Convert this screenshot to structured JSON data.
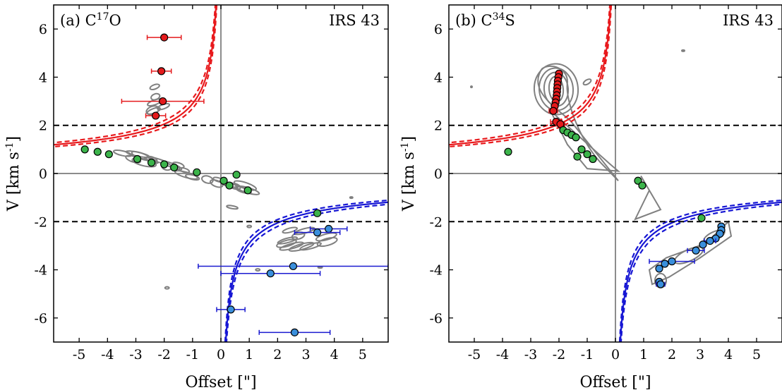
{
  "chart_data": [
    {
      "type": "scatter",
      "panel_label": "(a) C",
      "panel_label_sup": "17",
      "panel_label_end": "O",
      "source_label": "IRS 43",
      "xlabel": "Offset [\"]",
      "ylabel": "V [km s",
      "ylabel_sup": "-1",
      "ylabel_end": "]",
      "xlim": [
        -5.9,
        5.9
      ],
      "ylim": [
        -7,
        7
      ],
      "x_ticks": [
        -5,
        -4,
        -3,
        -2,
        -1,
        0,
        1,
        2,
        3,
        4,
        5
      ],
      "y_ticks": [
        -6,
        -4,
        -2,
        0,
        2,
        4,
        6
      ],
      "hlines": [
        2,
        -2
      ],
      "keplerian_scale": 2.9,
      "series": [
        {
          "color": "#e41a1c",
          "points": [
            {
              "x": -2.0,
              "y": 5.65,
              "xerr": 0.6
            },
            {
              "x": -2.1,
              "y": 4.25,
              "xerr": 0.35
            },
            {
              "x": -2.05,
              "y": 3.0,
              "xerr": 1.45
            },
            {
              "x": -2.3,
              "y": 2.4,
              "xerr": 0.35
            }
          ]
        },
        {
          "color": "#3cb44b",
          "points": [
            {
              "x": -4.8,
              "y": 1.0
            },
            {
              "x": -4.35,
              "y": 0.9
            },
            {
              "x": -3.95,
              "y": 0.8
            },
            {
              "x": -2.95,
              "y": 0.6
            },
            {
              "x": -2.45,
              "y": 0.45
            },
            {
              "x": -2.0,
              "y": 0.38
            },
            {
              "x": -1.65,
              "y": 0.25
            },
            {
              "x": -0.85,
              "y": 0.05
            },
            {
              "x": 0.1,
              "y": -0.3
            },
            {
              "x": 0.3,
              "y": -0.5
            },
            {
              "x": 0.55,
              "y": -0.05
            },
            {
              "x": 0.95,
              "y": -0.7
            },
            {
              "x": 3.4,
              "y": -1.65
            }
          ]
        },
        {
          "color": "#3a8fdc",
          "points": [
            {
              "x": 3.8,
              "y": -2.3,
              "xerr": 0.65
            },
            {
              "x": 3.4,
              "y": -2.45,
              "xerr": 0.8
            },
            {
              "x": 2.55,
              "y": -3.85,
              "xerr": 3.35
            },
            {
              "x": 1.75,
              "y": -4.15,
              "xerr": 1.75
            },
            {
              "x": 0.35,
              "y": -5.65,
              "xerr": 0.5
            },
            {
              "x": 2.6,
              "y": -6.6,
              "xerr": 1.25
            }
          ]
        }
      ]
    },
    {
      "type": "scatter",
      "panel_label": "(b) C",
      "panel_label_sup": "34",
      "panel_label_end": "S",
      "source_label": "IRS 43",
      "xlabel": "Offset [\"]",
      "ylabel": "V [km s",
      "ylabel_sup": "-1",
      "ylabel_end": "]",
      "xlim": [
        -5.9,
        5.9
      ],
      "ylim": [
        -7,
        7
      ],
      "x_ticks": [
        -5,
        -4,
        -3,
        -2,
        -1,
        0,
        1,
        2,
        3,
        4,
        5
      ],
      "y_ticks": [
        -6,
        -4,
        -2,
        0,
        2,
        4,
        6
      ],
      "hlines": [
        2,
        -2
      ],
      "keplerian_scale": 2.9,
      "series": [
        {
          "color": "#e41a1c",
          "points": [
            {
              "x": -2.0,
              "y": 4.15
            },
            {
              "x": -2.02,
              "y": 4.0
            },
            {
              "x": -2.04,
              "y": 3.85
            },
            {
              "x": -2.05,
              "y": 3.7
            },
            {
              "x": -2.06,
              "y": 3.55
            },
            {
              "x": -2.07,
              "y": 3.4
            },
            {
              "x": -2.08,
              "y": 3.25
            },
            {
              "x": -2.1,
              "y": 3.1
            },
            {
              "x": -2.12,
              "y": 2.95
            },
            {
              "x": -2.15,
              "y": 2.8
            },
            {
              "x": -2.2,
              "y": 2.6,
              "xerr": 0.15
            },
            {
              "x": -2.1,
              "y": 2.15,
              "xerr": 0.2
            },
            {
              "x": -1.95,
              "y": 2.05,
              "xerr": 0.15
            }
          ]
        },
        {
          "color": "#3cb44b",
          "points": [
            {
              "x": -1.85,
              "y": 1.8
            },
            {
              "x": -1.7,
              "y": 1.7
            },
            {
              "x": -1.55,
              "y": 1.6
            },
            {
              "x": -1.4,
              "y": 1.5
            },
            {
              "x": -1.2,
              "y": 1.0
            },
            {
              "x": -1.0,
              "y": 0.8
            },
            {
              "x": -1.35,
              "y": 0.7
            },
            {
              "x": -0.8,
              "y": 0.6
            },
            {
              "x": -3.8,
              "y": 0.9
            },
            {
              "x": 0.8,
              "y": -0.3
            },
            {
              "x": 0.95,
              "y": -0.5
            },
            {
              "x": 3.05,
              "y": -1.85
            }
          ]
        },
        {
          "color": "#3a8fdc",
          "points": [
            {
              "x": 3.75,
              "y": -2.2
            },
            {
              "x": 3.75,
              "y": -2.35
            },
            {
              "x": 3.7,
              "y": -2.5
            },
            {
              "x": 3.55,
              "y": -2.7
            },
            {
              "x": 3.35,
              "y": -2.8,
              "xerr": 0.2
            },
            {
              "x": 3.1,
              "y": -2.95
            },
            {
              "x": 2.85,
              "y": -3.2,
              "xerr": 0.3
            },
            {
              "x": 2.0,
              "y": -3.65,
              "xerr": 0.8
            },
            {
              "x": 1.75,
              "y": -3.75
            },
            {
              "x": 1.55,
              "y": -3.95
            },
            {
              "x": 1.55,
              "y": -4.5
            },
            {
              "x": 1.6,
              "y": -4.6,
              "xerr": 0.15
            }
          ]
        }
      ]
    }
  ]
}
